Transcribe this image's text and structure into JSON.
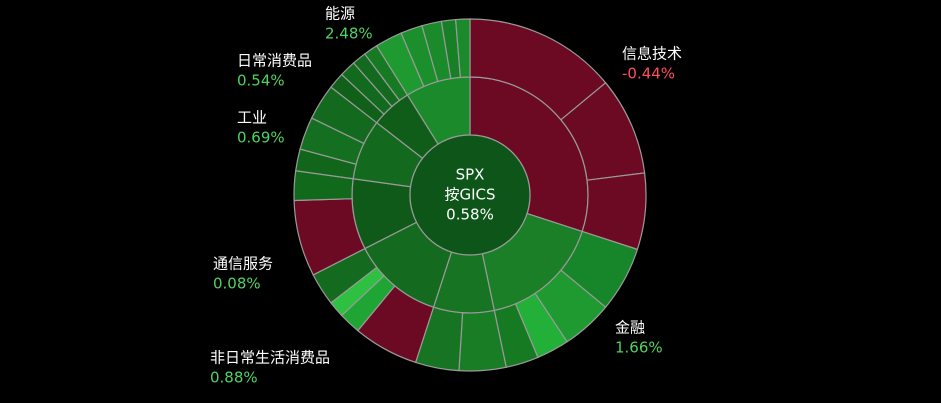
{
  "chart_data": {
    "type": "sunburst",
    "center": {
      "index": "SPX",
      "method": "按GICS",
      "change": 0.58,
      "change_label": "0.58%"
    },
    "sectors": [
      {
        "name": "信息技术",
        "change": -0.44,
        "change_label": "-0.44%",
        "weight": 30,
        "color": "#6b0a22",
        "children": [
          {
            "weight": 14,
            "color": "#6b0a22"
          },
          {
            "weight": 9,
            "color": "#6b0a22"
          },
          {
            "weight": 7,
            "color": "#6b0a22"
          }
        ]
      },
      {
        "name": "金融",
        "change": 1.66,
        "change_label": "1.66%",
        "weight": 16.7,
        "color": "#1a7f26",
        "children": [
          {
            "weight": 6,
            "color": "#17852a"
          },
          {
            "weight": 4.7,
            "color": "#1e9a30"
          },
          {
            "weight": 3,
            "color": "#22b038"
          },
          {
            "weight": 3,
            "color": "#157a22"
          }
        ]
      },
      {
        "name": null,
        "change": null,
        "change_label": null,
        "weight": 8.3,
        "color": "#167422",
        "children": [
          {
            "weight": 4.3,
            "color": "#187d25"
          },
          {
            "weight": 4,
            "color": "#167422"
          }
        ]
      },
      {
        "name": "非日常生活消费品",
        "change": 0.88,
        "change_label": "0.88%",
        "weight": 12.5,
        "color": "#146a1e",
        "children": [
          {
            "weight": 6,
            "color": "#6b0a22"
          },
          {
            "weight": 2,
            "color": "#1ea533"
          },
          {
            "weight": 1.5,
            "color": "#2ec040"
          },
          {
            "weight": 3,
            "color": "#146a1e"
          }
        ]
      },
      {
        "name": "通信服务",
        "change": 0.08,
        "change_label": "0.08%",
        "weight": 9.7,
        "color": "#0f5a18",
        "children": [
          {
            "weight": 7,
            "color": "#6b0a22"
          },
          {
            "weight": 2.7,
            "color": "#116a1c"
          }
        ]
      },
      {
        "name": "工业",
        "change": 0.69,
        "change_label": "0.69%",
        "weight": 8.3,
        "color": "#136a1e",
        "children": [
          {
            "weight": 2,
            "color": "#12661c"
          },
          {
            "weight": 3,
            "color": "#147020"
          },
          {
            "weight": 3.3,
            "color": "#136a1e"
          }
        ]
      },
      {
        "name": "日常消费品",
        "change": 0.54,
        "change_label": "0.54%",
        "weight": 5.6,
        "color": "#0f5d19",
        "children": [
          {
            "weight": 1.5,
            "color": "#106019"
          },
          {
            "weight": 1.5,
            "color": "#126a1e"
          },
          {
            "weight": 1.3,
            "color": "#136a1e"
          },
          {
            "weight": 1.3,
            "color": "#157a22"
          }
        ]
      },
      {
        "name": "能源",
        "change": 2.48,
        "change_label": "2.48%",
        "weight": 8.9,
        "color": "#1a8a2a",
        "children": [
          {
            "weight": 2.5,
            "color": "#1e9a30"
          },
          {
            "weight": 2,
            "color": "#1a8f2b"
          },
          {
            "weight": 1.8,
            "color": "#1a8a2a"
          },
          {
            "weight": 1.3,
            "color": "#178026"
          },
          {
            "weight": 1.3,
            "color": "#1a8a2a"
          }
        ]
      }
    ]
  }
}
